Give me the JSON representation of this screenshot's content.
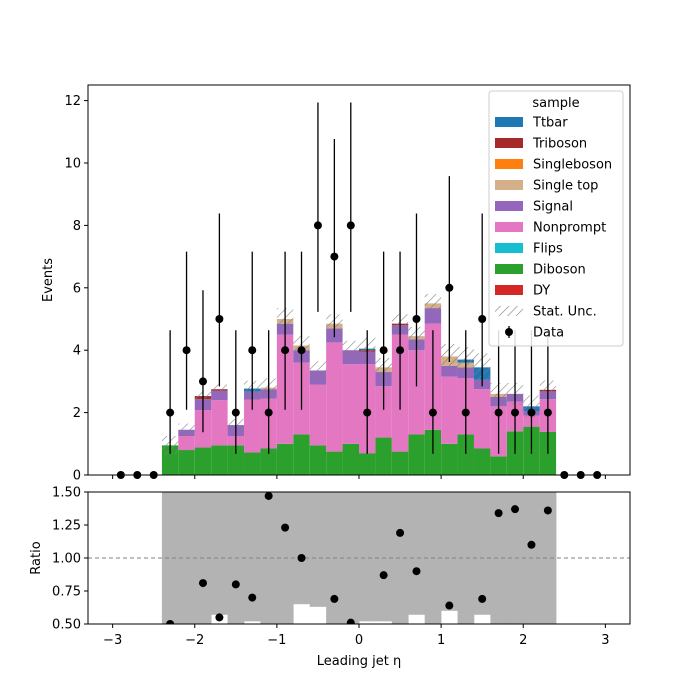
{
  "chart_data": [
    {
      "type": "stacked-histogram",
      "panel": "main",
      "xlabel": "",
      "ylabel": "Events",
      "xlim": [
        -3.3,
        3.3
      ],
      "ylim": [
        0,
        12.5
      ],
      "yticks": [
        0,
        2,
        4,
        6,
        8,
        10,
        12
      ],
      "bin_edges": [
        -2.4,
        -2.2,
        -2.0,
        -1.8,
        -1.6,
        -1.4,
        -1.2,
        -1.0,
        -0.8,
        -0.6,
        -0.4,
        -0.2,
        0.0,
        0.2,
        0.4,
        0.6,
        0.8,
        1.0,
        1.2,
        1.4,
        1.6,
        1.8,
        2.0,
        2.2,
        2.4
      ],
      "series": [
        {
          "name": "DY",
          "color": "#d62728",
          "values": [
            0,
            0,
            0,
            0,
            0,
            0,
            0,
            0,
            0,
            0,
            0,
            0,
            0,
            0,
            0,
            0,
            0,
            0,
            0,
            0,
            0,
            0,
            0,
            0
          ]
        },
        {
          "name": "Diboson",
          "color": "#2ca02c",
          "values": [
            0.95,
            0.8,
            0.88,
            0.95,
            0.95,
            0.72,
            0.85,
            1.0,
            1.3,
            0.95,
            0.75,
            1.0,
            0.7,
            1.2,
            0.75,
            1.3,
            1.45,
            1.0,
            1.3,
            0.85,
            0.6,
            1.4,
            1.55,
            1.38
          ]
        },
        {
          "name": "Flips",
          "color": "#17becf",
          "values": [
            0,
            0,
            0,
            0,
            0,
            0,
            0,
            0,
            0,
            0,
            0,
            0,
            0,
            0,
            0,
            0,
            0,
            0,
            0,
            0,
            0,
            0,
            0,
            0
          ]
        },
        {
          "name": "Nonprompt",
          "color": "#e377c2",
          "values": [
            0,
            0.45,
            1.2,
            1.45,
            0.3,
            1.7,
            1.6,
            3.5,
            2.3,
            1.95,
            3.5,
            2.55,
            2.85,
            1.65,
            3.75,
            2.7,
            3.4,
            2.15,
            1.8,
            1.9,
            1.6,
            0.95,
            0.35,
            1.05
          ]
        },
        {
          "name": "Signal",
          "color": "#9467bd",
          "values": [
            0,
            0.2,
            0.35,
            0.3,
            0.35,
            0.25,
            0.3,
            0.35,
            0.4,
            0.45,
            0.45,
            0.45,
            0.4,
            0.45,
            0.3,
            0.35,
            0.5,
            0.35,
            0.35,
            0.3,
            0.3,
            0.25,
            0.15,
            0.25
          ]
        },
        {
          "name": "Single top",
          "color": "#d4af88",
          "values": [
            0,
            0,
            0,
            0,
            0,
            0,
            0.05,
            0.15,
            0.15,
            0,
            0.15,
            0,
            0,
            0.15,
            0,
            0.1,
            0.15,
            0.3,
            0.15,
            0,
            0.1,
            0,
            0,
            0
          ]
        },
        {
          "name": "Singleboson",
          "color": "#ff7f0e",
          "values": [
            0,
            0,
            0,
            0,
            0,
            0,
            0,
            0,
            0,
            0,
            0,
            0,
            0,
            0,
            0,
            0,
            0,
            0,
            0,
            0,
            0,
            0,
            0,
            0
          ]
        },
        {
          "name": "Triboson",
          "color": "#a52a2a",
          "values": [
            0,
            0,
            0.1,
            0.05,
            0,
            0,
            0,
            0,
            0,
            0,
            0,
            0,
            0.05,
            0,
            0.05,
            0,
            0,
            0,
            0,
            0,
            0,
            0,
            0,
            0.05
          ]
        },
        {
          "name": "Ttbar",
          "color": "#1f77b4",
          "values": [
            0,
            0,
            0,
            0,
            0,
            0.1,
            0,
            0,
            0,
            0,
            0,
            0,
            0.05,
            0,
            0,
            0,
            0,
            0,
            0.1,
            0.4,
            0,
            0,
            0.15,
            0
          ]
        }
      ],
      "stat_unc": [
        0.3,
        0.2,
        0.15,
        0.15,
        0.2,
        0.25,
        0.3,
        0.35,
        0.3,
        0.3,
        0.3,
        0.3,
        0.35,
        0.3,
        0.3,
        0.3,
        0.3,
        0.4,
        0.4,
        0.45,
        0.35,
        0.35,
        0.35,
        0.3
      ],
      "data_points": {
        "name": "Data",
        "x": [
          -2.9,
          -2.7,
          -2.5,
          -2.3,
          -2.1,
          -1.9,
          -1.7,
          -1.5,
          -1.3,
          -1.1,
          -0.9,
          -0.7,
          -0.5,
          -0.3,
          -0.1,
          0.1,
          0.3,
          0.5,
          0.7,
          0.9,
          1.1,
          1.3,
          1.5,
          1.7,
          1.9,
          2.1,
          2.3,
          2.5,
          2.7,
          2.9
        ],
        "y": [
          0,
          0,
          0,
          2,
          4,
          3,
          5,
          2,
          4,
          2,
          4,
          4,
          8,
          7,
          8,
          2,
          4,
          4,
          5,
          2,
          6,
          2,
          5,
          2,
          2,
          2,
          2,
          0,
          0,
          0
        ],
        "err_low": [
          0,
          0,
          0,
          1.32,
          1.91,
          1.63,
          2.16,
          1.32,
          1.91,
          1.32,
          1.91,
          1.91,
          2.77,
          2.58,
          2.77,
          1.32,
          1.91,
          1.91,
          2.16,
          1.32,
          2.38,
          1.32,
          2.16,
          1.32,
          1.32,
          1.32,
          1.32,
          0,
          0,
          0
        ],
        "err_high": [
          0,
          0,
          0,
          2.64,
          3.16,
          2.92,
          3.38,
          2.64,
          3.16,
          2.64,
          3.16,
          3.16,
          3.94,
          3.77,
          3.94,
          2.64,
          3.16,
          3.16,
          3.38,
          2.64,
          3.58,
          2.64,
          3.38,
          2.64,
          2.64,
          2.64,
          2.64,
          0,
          0,
          0
        ]
      },
      "legend": {
        "title": "sample",
        "placement": "top-right",
        "entries": [
          "Ttbar",
          "Triboson",
          "Singleboson",
          "Single top",
          "Signal",
          "Nonprompt",
          "Flips",
          "Diboson",
          "DY",
          "Stat. Unc.",
          "Data"
        ]
      }
    },
    {
      "type": "ratio",
      "panel": "ratio",
      "xlabel": "Leading jet  η",
      "ylabel": "Ratio",
      "xlim": [
        -3.3,
        3.3
      ],
      "ylim": [
        0.5,
        1.5
      ],
      "xticks": [
        -3,
        -2,
        -1,
        0,
        1,
        2,
        3
      ],
      "yticks": [
        0.5,
        0.75,
        1.0,
        1.25,
        1.5
      ],
      "reference_line": 1.0,
      "unc_band_low": [
        0,
        0.5,
        0.5,
        0.57,
        0.5,
        0.52,
        0.5,
        0.5,
        0.65,
        0.63,
        0.5,
        0.5,
        0.52,
        0.52,
        0.5,
        0.57,
        0.5,
        0.6,
        0.5,
        0.57,
        0.5,
        0.5,
        0.5,
        0.5
      ],
      "unc_band_high": [
        1.5,
        1.5,
        1.5,
        1.5,
        1.5,
        1.5,
        1.5,
        1.5,
        1.5,
        1.5,
        1.5,
        1.5,
        1.5,
        1.5,
        1.5,
        1.5,
        1.5,
        1.5,
        1.5,
        1.5,
        1.5,
        1.5,
        1.5,
        1.5
      ],
      "points": {
        "x": [
          -2.3,
          -1.9,
          -1.7,
          -1.5,
          -1.3,
          -1.1,
          -0.9,
          -0.7,
          -0.3,
          -0.1,
          0.3,
          0.5,
          0.7,
          1.1,
          1.5,
          1.7,
          1.9,
          2.1,
          2.3
        ],
        "y": [
          0.5,
          0.81,
          0.55,
          0.8,
          0.7,
          1.47,
          1.23,
          1.0,
          0.69,
          0.51,
          0.87,
          1.19,
          0.9,
          0.64,
          0.69,
          1.34,
          1.37,
          1.1,
          1.36
        ]
      }
    }
  ],
  "tick_labels": {
    "main_y": [
      "0",
      "2",
      "4",
      "6",
      "8",
      "10",
      "12"
    ],
    "ratio_y": [
      "0.50",
      "0.75",
      "1.00",
      "1.25",
      "1.50"
    ],
    "x": [
      "−3",
      "−2",
      "−1",
      "0",
      "1",
      "2",
      "3"
    ]
  }
}
